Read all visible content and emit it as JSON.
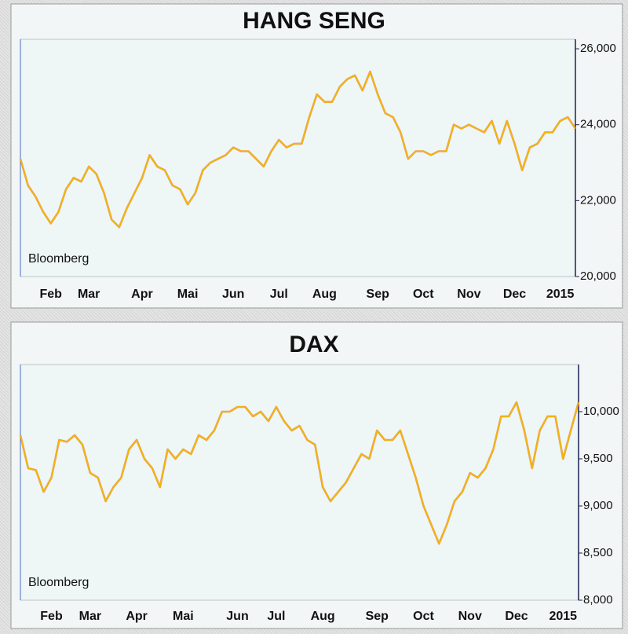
{
  "chart_data": [
    {
      "type": "line",
      "title": "HANG SENG",
      "annotation": "Bloomberg",
      "categories": [
        null,
        null,
        null,
        null,
        "Feb",
        null,
        null,
        null,
        null,
        "Mar",
        null,
        null,
        null,
        null,
        null,
        null,
        "Apr",
        null,
        null,
        null,
        null,
        null,
        "Mai",
        null,
        null,
        null,
        null,
        null,
        "Jun",
        null,
        null,
        null,
        null,
        null,
        "Jul",
        null,
        null,
        null,
        null,
        null,
        "Aug",
        null,
        null,
        null,
        null,
        null,
        null,
        "Sep",
        null,
        null,
        null,
        null,
        null,
        "Oct",
        null,
        null,
        null,
        null,
        null,
        "Nov",
        null,
        null,
        null,
        null,
        null,
        "Dec",
        null,
        null,
        null,
        null,
        null,
        "2015",
        null,
        null
      ],
      "values": [
        23100,
        22400,
        22100,
        21700,
        21400,
        21700,
        22300,
        22600,
        22500,
        22900,
        22700,
        22200,
        21500,
        21300,
        21800,
        22200,
        22600,
        23200,
        22900,
        22800,
        22400,
        22300,
        21900,
        22200,
        22800,
        23000,
        23100,
        23200,
        23400,
        23300,
        23300,
        23100,
        22900,
        23300,
        23600,
        23400,
        23500,
        23500,
        24200,
        24800,
        24600,
        24600,
        25000,
        25200,
        25300,
        24900,
        25400,
        24800,
        24300,
        24200,
        23800,
        23100,
        23300,
        23300,
        23200,
        23300,
        23300,
        24000,
        23900,
        24000,
        23900,
        23800,
        24100,
        23500,
        24100,
        23500,
        22800,
        23400,
        23500,
        23800,
        23800,
        24100,
        24200,
        23900
      ],
      "color": "#f2b800",
      "ylim": [
        20000,
        26250
      ],
      "yticks": [
        {
          "value": 20000,
          "label": "20,000"
        },
        {
          "value": 22000,
          "label": "22,000"
        },
        {
          "value": 24000,
          "label": "24,000"
        },
        {
          "value": 26000,
          "label": "26,000"
        }
      ]
    },
    {
      "type": "line",
      "title": "DAX",
      "annotation": "Bloomberg",
      "categories": [
        null,
        null,
        null,
        null,
        "Feb",
        null,
        null,
        null,
        null,
        "Mar",
        null,
        null,
        null,
        null,
        null,
        "Apr",
        null,
        null,
        null,
        null,
        null,
        "Mai",
        null,
        null,
        null,
        null,
        null,
        null,
        "Jun",
        null,
        null,
        null,
        null,
        "Jul",
        null,
        null,
        null,
        null,
        null,
        "Aug",
        null,
        null,
        null,
        null,
        null,
        null,
        "Sep",
        null,
        null,
        null,
        null,
        null,
        "Oct",
        null,
        null,
        null,
        null,
        null,
        "Nov",
        null,
        null,
        null,
        null,
        null,
        "Dec",
        null,
        null,
        null,
        null,
        null,
        "2015",
        null,
        null
      ],
      "values": [
        9750,
        9400,
        9380,
        9150,
        9300,
        9700,
        9680,
        9750,
        9650,
        9350,
        9300,
        9050,
        9200,
        9300,
        9600,
        9700,
        9500,
        9400,
        9200,
        9600,
        9500,
        9600,
        9550,
        9750,
        9700,
        9800,
        10000,
        10000,
        10050,
        10050,
        9950,
        10000,
        9900,
        10050,
        9900,
        9800,
        9850,
        9700,
        9650,
        9200,
        9050,
        9150,
        9250,
        9400,
        9550,
        9500,
        9800,
        9700,
        9700,
        9800,
        9550,
        9300,
        9000,
        8800,
        8600,
        8800,
        9050,
        9150,
        9350,
        9300,
        9400,
        9600,
        9950,
        9950,
        10100,
        9800,
        9400,
        9800,
        9950,
        9950,
        9500,
        9800,
        10100
      ],
      "color": "#f2b800",
      "ylim": [
        8000,
        10500
      ],
      "yticks": [
        {
          "value": 8000,
          "label": "8,000"
        },
        {
          "value": 8500,
          "label": "8,500"
        },
        {
          "value": 9000,
          "label": "9,000"
        },
        {
          "value": 9500,
          "label": "9,500"
        },
        {
          "value": 10000,
          "label": "10,000"
        }
      ]
    }
  ]
}
